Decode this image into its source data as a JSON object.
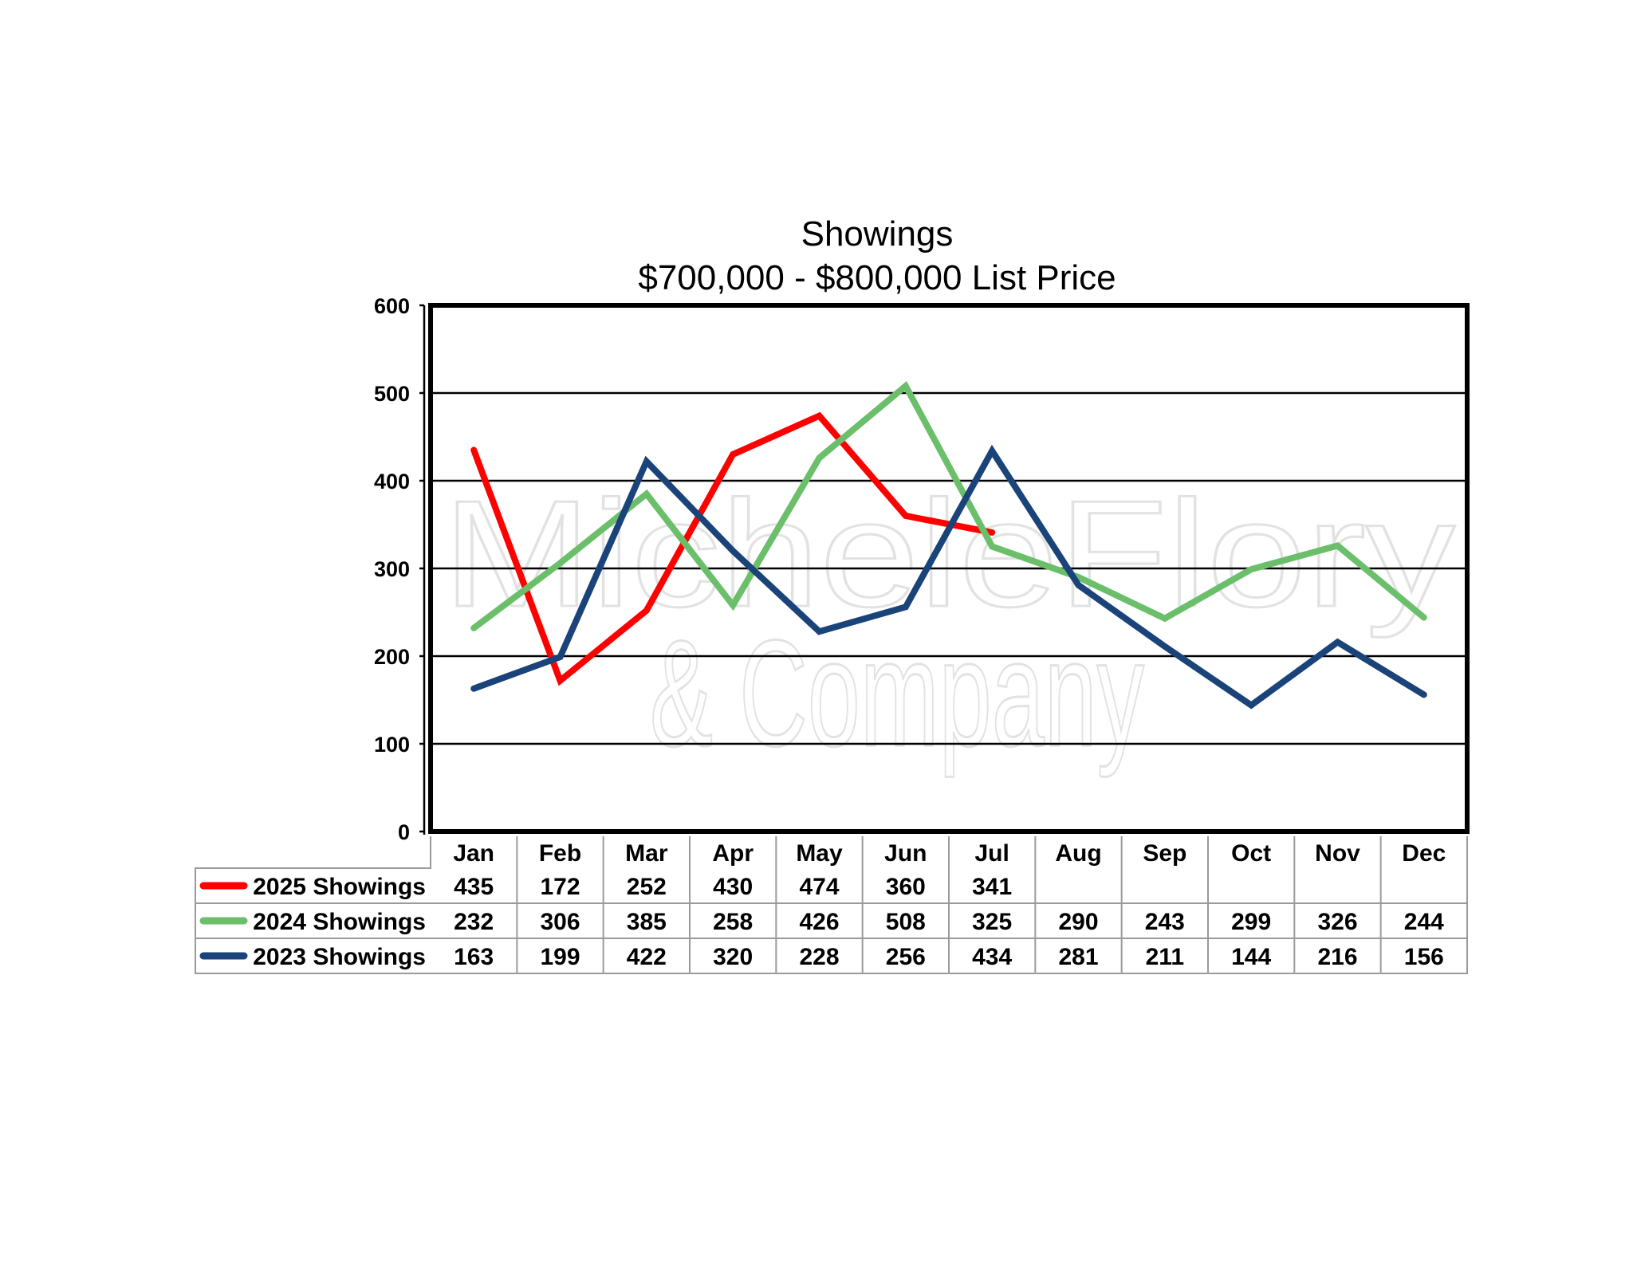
{
  "chart_data": {
    "type": "line",
    "title": "Showings",
    "subtitle": "$700,000 - $800,000 List Price",
    "xlabel": "",
    "ylabel": "",
    "categories": [
      "Jan",
      "Feb",
      "Mar",
      "Apr",
      "May",
      "Jun",
      "Jul",
      "Aug",
      "Sep",
      "Oct",
      "Nov",
      "Dec"
    ],
    "ylim": [
      0,
      600
    ],
    "yticks": [
      0,
      100,
      200,
      300,
      400,
      500,
      600
    ],
    "grid": true,
    "legend": "data-table-bottom",
    "series": [
      {
        "name": "2025 Showings",
        "color": "#ff0000",
        "values": [
          435,
          172,
          252,
          430,
          474,
          360,
          341,
          null,
          null,
          null,
          null,
          null
        ]
      },
      {
        "name": "2024 Showings",
        "color": "#6bbf6b",
        "values": [
          232,
          306,
          385,
          258,
          426,
          508,
          325,
          290,
          243,
          299,
          326,
          244
        ]
      },
      {
        "name": "2023 Showings",
        "color": "#1a4479",
        "values": [
          163,
          199,
          422,
          320,
          228,
          256,
          434,
          281,
          211,
          144,
          216,
          156
        ]
      }
    ]
  },
  "watermark": {
    "line1": "MicheleFlory",
    "line2": "& Company"
  }
}
